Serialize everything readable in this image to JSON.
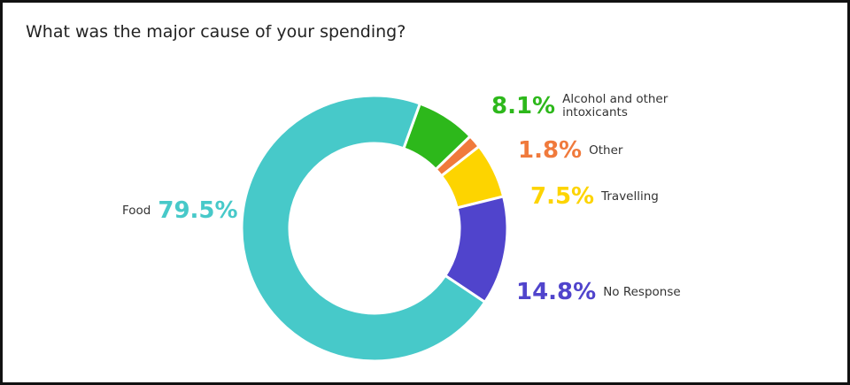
{
  "chart_data": {
    "type": "donut",
    "title": "What was the major cause of your spending?",
    "categories": [
      "Alcohol and other intoxicants",
      "Other",
      "Travelling",
      "No Response",
      "Food"
    ],
    "values": [
      8.1,
      1.8,
      7.5,
      14.8,
      79.5
    ],
    "value_labels": [
      "8.1%",
      "1.8%",
      "7.5%",
      "14.8%",
      "79.5%"
    ],
    "colors": [
      "#2db81b",
      "#f07a3c",
      "#fdd400",
      "#5044cc",
      "#47c9c9"
    ]
  }
}
